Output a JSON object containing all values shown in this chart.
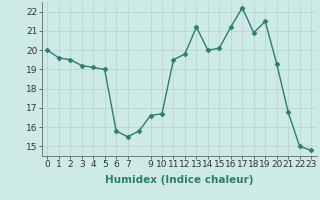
{
  "x": [
    0,
    1,
    2,
    3,
    4,
    5,
    6,
    7,
    8,
    9,
    10,
    11,
    12,
    13,
    14,
    15,
    16,
    17,
    18,
    19,
    20,
    21,
    22,
    23
  ],
  "y": [
    20.0,
    19.6,
    19.5,
    19.2,
    19.1,
    19.0,
    15.8,
    15.5,
    15.8,
    16.6,
    16.7,
    19.5,
    19.8,
    21.2,
    20.0,
    20.1,
    21.2,
    22.2,
    20.9,
    21.5,
    19.3,
    16.8,
    15.0,
    14.8
  ],
  "line_color": "#2e7d6e",
  "marker": "D",
  "marker_size": 2.5,
  "xlabel": "Humidex (Indice chaleur)",
  "ylim": [
    14.5,
    22.5
  ],
  "xlim": [
    -0.5,
    23.5
  ],
  "yticks": [
    15,
    16,
    17,
    18,
    19,
    20,
    21,
    22
  ],
  "xticks": [
    0,
    1,
    2,
    3,
    4,
    5,
    6,
    7,
    9,
    10,
    11,
    12,
    13,
    14,
    15,
    16,
    17,
    18,
    19,
    20,
    21,
    22,
    23
  ],
  "background_color": "#cdeae7",
  "grid_color": "#b8d8d5",
  "tick_fontsize": 6.5,
  "xlabel_fontsize": 7.5,
  "line_width": 1.0
}
